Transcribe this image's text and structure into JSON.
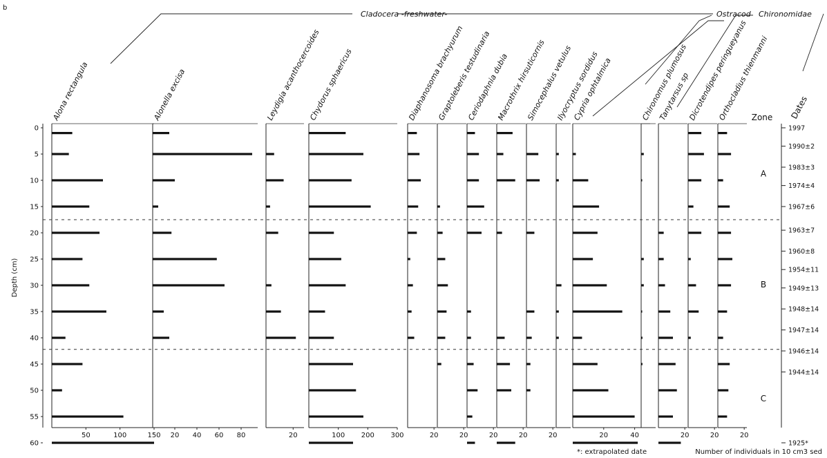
{
  "figure": {
    "panel_label": "b",
    "groups": [
      {
        "name": "Cladocera -freshwater-"
      },
      {
        "name": "Ostracod"
      },
      {
        "name": "Chironomidae"
      }
    ],
    "depth_axis_label": "Depth (cm)",
    "depth_ticks": [
      0,
      5,
      10,
      15,
      20,
      25,
      30,
      35,
      40,
      45,
      50,
      55,
      60
    ],
    "zone_header": "Zone",
    "dates_header": "Dates",
    "zones": [
      {
        "label": "A",
        "top": 0,
        "bottom": 17.5
      },
      {
        "label": "B",
        "top": 17.5,
        "bottom": 42.2
      },
      {
        "label": "C",
        "top": 42.2,
        "bottom": 61
      }
    ],
    "zone_boundaries": [
      17.5,
      42.2
    ],
    "dates": [
      {
        "depth": 0,
        "label": "1997"
      },
      {
        "depth": 3.5,
        "label": "1990±2"
      },
      {
        "depth": 7.5,
        "label": "1983±3"
      },
      {
        "depth": 11,
        "label": "1974±4"
      },
      {
        "depth": 15,
        "label": "1967±6"
      },
      {
        "depth": 19.5,
        "label": "1963±7"
      },
      {
        "depth": 23.5,
        "label": "1960±8"
      },
      {
        "depth": 27,
        "label": "1954±11"
      },
      {
        "depth": 30.5,
        "label": "1949±13"
      },
      {
        "depth": 34.5,
        "label": "1948±14"
      },
      {
        "depth": 38.5,
        "label": "1947±14"
      },
      {
        "depth": 42.5,
        "label": "1946±14"
      },
      {
        "depth": 46.5,
        "label": "1944±14"
      },
      {
        "depth": 60,
        "label": "1925*"
      }
    ],
    "footnote": "*: extrapolated date",
    "units_note": "Number of individuals in 10 cm3 sed"
  },
  "chart_data": {
    "type": "bar",
    "orientation": "horizontal",
    "y_axis": "depth_cm",
    "depths": [
      1,
      5,
      10,
      15,
      20,
      25,
      30,
      35,
      40,
      45,
      50,
      55,
      60
    ],
    "series": [
      {
        "name": "Alona rectangula",
        "group": "Cladocera",
        "xlim": [
          0,
          150
        ],
        "ticks": [
          50,
          100,
          150
        ],
        "values": [
          30,
          25,
          75,
          55,
          70,
          45,
          55,
          80,
          20,
          45,
          15,
          105,
          150
        ]
      },
      {
        "name": "Alonella excisa",
        "group": "Cladocera",
        "xlim": [
          0,
          95
        ],
        "ticks": [
          20,
          40,
          60,
          80
        ],
        "values": [
          15,
          90,
          20,
          5,
          17,
          58,
          65,
          10,
          15,
          0,
          0,
          0,
          0
        ]
      },
      {
        "name": "Leydigia acanthocercoides",
        "group": "Cladocera",
        "xlim": [
          0,
          28
        ],
        "ticks": [
          20
        ],
        "values": [
          0,
          6,
          13,
          3,
          9,
          0,
          4,
          11,
          22,
          0,
          0,
          0,
          0
        ]
      },
      {
        "name": "Chydorus sphaericus",
        "group": "Cladocera",
        "xlim": [
          0,
          300
        ],
        "ticks": [
          100,
          200,
          300
        ],
        "values": [
          125,
          185,
          145,
          210,
          85,
          110,
          125,
          55,
          85,
          150,
          160,
          185,
          150
        ]
      },
      {
        "name": "Diaphanosoma brachyurum",
        "group": "Cladocera",
        "xlim": [
          0,
          22
        ],
        "ticks": [
          20
        ],
        "values": [
          7,
          9,
          10,
          8,
          7,
          2,
          4,
          3,
          5,
          0,
          0,
          0,
          0
        ]
      },
      {
        "name": "Graptoleberis testudinaria",
        "group": "Cladocera",
        "xlim": [
          0,
          22
        ],
        "ticks": [
          20
        ],
        "values": [
          0,
          0,
          0,
          2,
          4,
          6,
          8,
          7,
          6,
          3,
          0,
          0,
          0
        ]
      },
      {
        "name": "Ceriodaphnia dubia",
        "group": "Cladocera",
        "xlim": [
          0,
          22
        ],
        "ticks": [
          20
        ],
        "values": [
          6,
          9,
          9,
          13,
          11,
          0,
          0,
          3,
          3,
          5,
          8,
          4,
          6
        ]
      },
      {
        "name": "Macrothrix hirsuticornis",
        "group": "Cladocera",
        "xlim": [
          0,
          22
        ],
        "ticks": [
          20
        ],
        "values": [
          12,
          5,
          14,
          0,
          4,
          0,
          0,
          0,
          6,
          10,
          11,
          0,
          14
        ]
      },
      {
        "name": "Simocephalus vetulus",
        "group": "Cladocera",
        "xlim": [
          0,
          22
        ],
        "ticks": [
          20
        ],
        "values": [
          0,
          9,
          10,
          0,
          6,
          0,
          0,
          6,
          4,
          3,
          3,
          0,
          0
        ]
      },
      {
        "name": "Ilyocryptus sordidus",
        "group": "Cladocera",
        "xlim": [
          0,
          22
        ],
        "ticks": [],
        "values": [
          0,
          4,
          4,
          0,
          0,
          0,
          8,
          4,
          4,
          0,
          0,
          0,
          0
        ]
      },
      {
        "name": "Cypria ophtalmica",
        "group": "Ostracod",
        "xlim": [
          0,
          50
        ],
        "ticks": [
          20,
          40
        ],
        "values": [
          0,
          2,
          10,
          17,
          16,
          13,
          22,
          32,
          6,
          16,
          23,
          40,
          42
        ]
      },
      {
        "name": "Chironomus plumosus",
        "group": "Chironomidae",
        "xlim": [
          0,
          22
        ],
        "ticks": [],
        "values": [
          0,
          4,
          1,
          0,
          0,
          4,
          4,
          1,
          2,
          2,
          0,
          0,
          0
        ]
      },
      {
        "name": "Tanytarsus sp",
        "group": "Chironomidae",
        "xlim": [
          0,
          22
        ],
        "ticks": [
          20
        ],
        "values": [
          0,
          0,
          0,
          0,
          4,
          4,
          5,
          9,
          11,
          13,
          14,
          11,
          17
        ]
      },
      {
        "name": "Dicrotendipes peringueyanus",
        "group": "Chironomidae",
        "xlim": [
          0,
          22
        ],
        "ticks": [
          20
        ],
        "values": [
          10,
          12,
          10,
          4,
          10,
          2,
          6,
          8,
          2,
          0,
          0,
          0,
          0
        ]
      },
      {
        "name": "Orthocladius thienmanni",
        "group": "Chironomidae",
        "xlim": [
          0,
          22
        ],
        "ticks": [
          20
        ],
        "values": [
          7,
          10,
          4,
          9,
          10,
          11,
          10,
          7,
          4,
          9,
          8,
          7,
          0
        ]
      }
    ]
  }
}
